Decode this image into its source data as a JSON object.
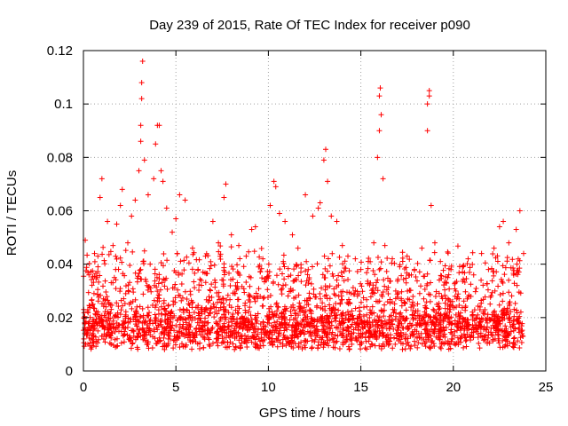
{
  "chart_data": {
    "type": "scatter",
    "title": "Day 239 of 2015, Rate Of TEC Index for receiver p090",
    "xlabel": "GPS time / hours",
    "ylabel": "ROTI / TECUs",
    "xlim": [
      0,
      25
    ],
    "ylim": [
      0,
      0.12
    ],
    "xticks": [
      0,
      5,
      10,
      15,
      20,
      25
    ],
    "yticks": [
      0,
      0.02,
      0.04,
      0.06,
      0.08,
      0.1,
      0.12
    ],
    "xtick_labels": [
      "0",
      "5",
      "10",
      "15",
      "20",
      "25"
    ],
    "ytick_labels": [
      "0",
      "0.02",
      "0.04",
      "0.06",
      "0.08",
      "0.1",
      "0.12"
    ],
    "grid": true,
    "legend": "none",
    "marker": "+",
    "color": "#ff0000",
    "series": [
      {
        "name": "ROTI",
        "points": [
          [
            0.1,
            0.049
          ],
          [
            0.3,
            0.036
          ],
          [
            0.6,
            0.044
          ],
          [
            0.9,
            0.065
          ],
          [
            1.0,
            0.072
          ],
          [
            1.3,
            0.056
          ],
          [
            1.6,
            0.047
          ],
          [
            1.8,
            0.055
          ],
          [
            2.0,
            0.062
          ],
          [
            2.1,
            0.068
          ],
          [
            2.4,
            0.048
          ],
          [
            2.6,
            0.058
          ],
          [
            2.8,
            0.064
          ],
          [
            3.0,
            0.075
          ],
          [
            3.1,
            0.086
          ],
          [
            3.1,
            0.092
          ],
          [
            3.15,
            0.102
          ],
          [
            3.15,
            0.108
          ],
          [
            3.2,
            0.116
          ],
          [
            3.3,
            0.079
          ],
          [
            3.5,
            0.066
          ],
          [
            3.8,
            0.072
          ],
          [
            3.9,
            0.085
          ],
          [
            4.0,
            0.092
          ],
          [
            4.1,
            0.092
          ],
          [
            4.2,
            0.075
          ],
          [
            4.3,
            0.071
          ],
          [
            4.5,
            0.061
          ],
          [
            4.8,
            0.052
          ],
          [
            5.0,
            0.057
          ],
          [
            5.2,
            0.066
          ],
          [
            5.5,
            0.064
          ],
          [
            5.9,
            0.046
          ],
          [
            6.2,
            0.038
          ],
          [
            6.6,
            0.043
          ],
          [
            7.0,
            0.056
          ],
          [
            7.3,
            0.048
          ],
          [
            7.6,
            0.065
          ],
          [
            7.7,
            0.07
          ],
          [
            8.0,
            0.051
          ],
          [
            8.4,
            0.047
          ],
          [
            8.8,
            0.043
          ],
          [
            9.1,
            0.053
          ],
          [
            9.3,
            0.054
          ],
          [
            9.7,
            0.042
          ],
          [
            10.1,
            0.062
          ],
          [
            10.3,
            0.071
          ],
          [
            10.4,
            0.069
          ],
          [
            10.6,
            0.059
          ],
          [
            10.9,
            0.056
          ],
          [
            11.3,
            0.051
          ],
          [
            11.6,
            0.046
          ],
          [
            12.0,
            0.066
          ],
          [
            12.4,
            0.058
          ],
          [
            12.7,
            0.061
          ],
          [
            12.8,
            0.063
          ],
          [
            13.0,
            0.079
          ],
          [
            13.1,
            0.083
          ],
          [
            13.2,
            0.071
          ],
          [
            13.4,
            0.058
          ],
          [
            13.7,
            0.056
          ],
          [
            14.0,
            0.047
          ],
          [
            14.3,
            0.043
          ],
          [
            14.7,
            0.042
          ],
          [
            15.0,
            0.038
          ],
          [
            15.4,
            0.041
          ],
          [
            15.7,
            0.048
          ],
          [
            15.9,
            0.08
          ],
          [
            16.0,
            0.09
          ],
          [
            16.0,
            0.103
          ],
          [
            16.05,
            0.106
          ],
          [
            16.1,
            0.096
          ],
          [
            16.2,
            0.072
          ],
          [
            16.3,
            0.047
          ],
          [
            16.7,
            0.042
          ],
          [
            17.1,
            0.039
          ],
          [
            17.5,
            0.043
          ],
          [
            17.9,
            0.038
          ],
          [
            18.3,
            0.046
          ],
          [
            18.6,
            0.09
          ],
          [
            18.6,
            0.1
          ],
          [
            18.7,
            0.105
          ],
          [
            18.7,
            0.103
          ],
          [
            18.8,
            0.062
          ],
          [
            19.0,
            0.048
          ],
          [
            19.3,
            0.041
          ],
          [
            19.7,
            0.035
          ],
          [
            20.1,
            0.033
          ],
          [
            20.5,
            0.039
          ],
          [
            20.8,
            0.042
          ],
          [
            21.1,
            0.036
          ],
          [
            21.5,
            0.034
          ],
          [
            21.9,
            0.038
          ],
          [
            22.2,
            0.046
          ],
          [
            22.5,
            0.054
          ],
          [
            22.7,
            0.056
          ],
          [
            23.0,
            0.048
          ],
          [
            23.4,
            0.053
          ],
          [
            23.6,
            0.06
          ],
          [
            23.8,
            0.044
          ]
        ]
      }
    ]
  }
}
